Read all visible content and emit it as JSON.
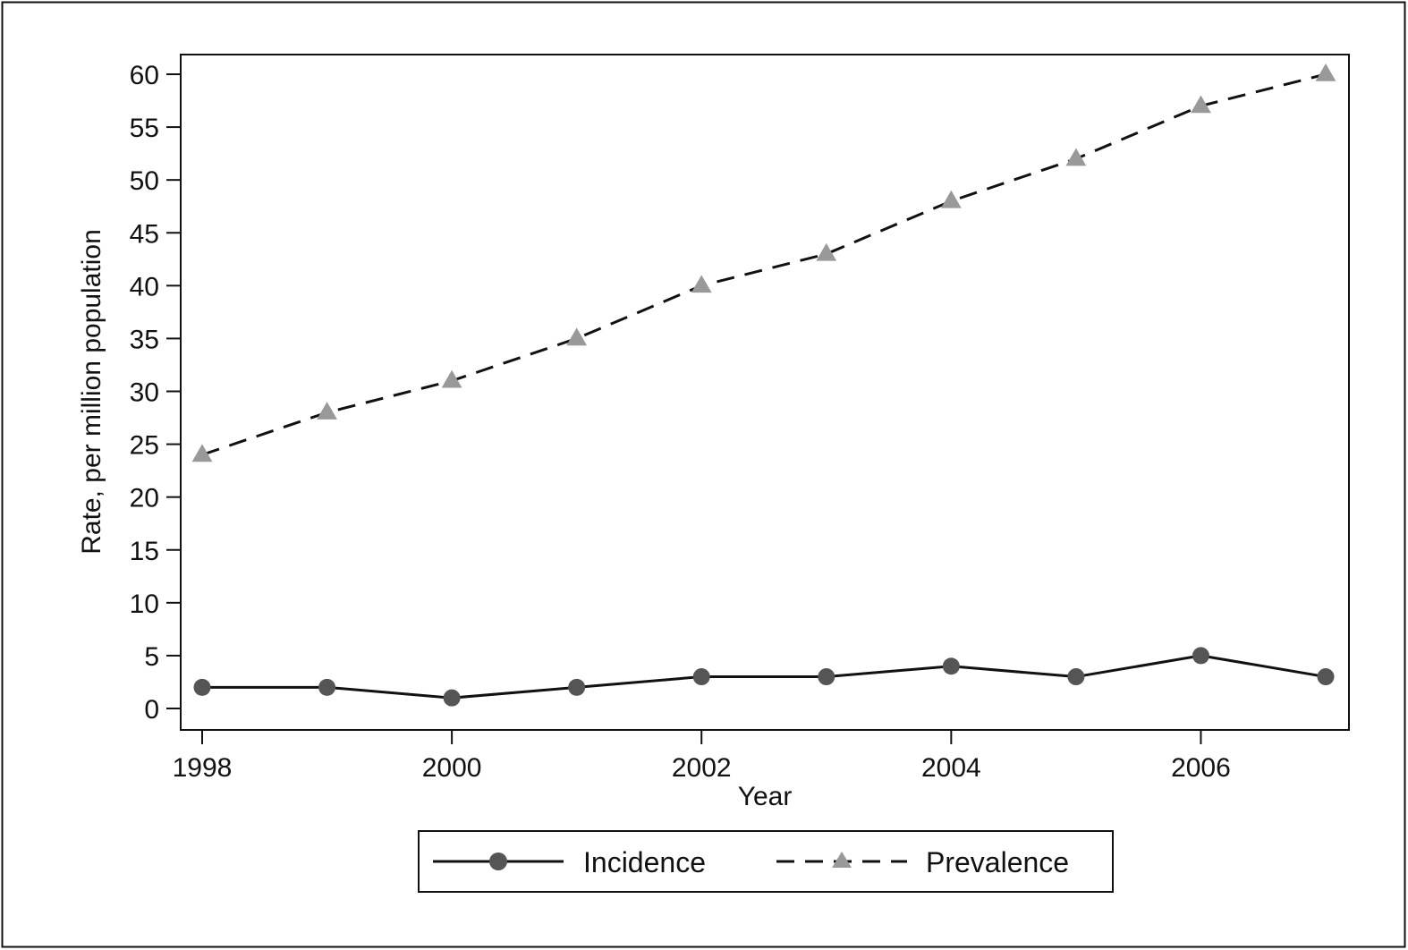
{
  "chart_data": {
    "type": "line",
    "title": "",
    "xlabel": "Year",
    "ylabel": "Rate, per million population",
    "x": [
      1998,
      1999,
      2000,
      2001,
      2002,
      2003,
      2004,
      2005,
      2006,
      2007
    ],
    "xlim": [
      1998,
      2007
    ],
    "ylim": [
      0,
      60
    ],
    "xticks": [
      1998,
      2000,
      2002,
      2004,
      2006
    ],
    "xtick_labels": [
      "1998",
      "2000",
      "2002",
      "2004",
      "2006"
    ],
    "yticks": [
      0,
      5,
      10,
      15,
      20,
      25,
      30,
      35,
      40,
      45,
      50,
      55,
      60
    ],
    "ytick_labels": [
      "0",
      "5",
      "10",
      "15",
      "20",
      "25",
      "30",
      "35",
      "40",
      "45",
      "50",
      "55",
      "60"
    ],
    "grid": false,
    "legend_position": "bottom",
    "series": [
      {
        "name": "Incidence",
        "values": [
          2,
          2,
          1,
          2,
          3,
          3,
          4,
          3,
          5,
          3
        ],
        "line_style": "solid",
        "marker": "circle",
        "line_color": "#111111",
        "marker_color": "#555555"
      },
      {
        "name": "Prevalence",
        "values": [
          24,
          28,
          31,
          35,
          40,
          43,
          48,
          52,
          57,
          60
        ],
        "line_style": "dashed",
        "marker": "triangle",
        "line_color": "#111111",
        "marker_color": "#999999"
      }
    ]
  }
}
